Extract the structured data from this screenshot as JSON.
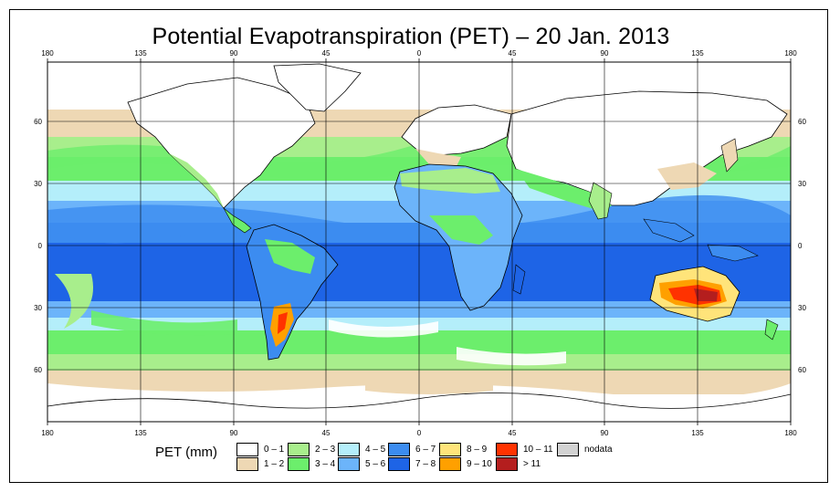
{
  "title": "Potential Evapotranspiration (PET) – 20 Jan. 2013",
  "longitude_ticks": [
    "180",
    "135",
    "90",
    "45",
    "0",
    "45",
    "90",
    "135",
    "180"
  ],
  "latitude_ticks": [
    "60",
    "30",
    "0",
    "30",
    "60"
  ],
  "legend": {
    "label": "PET (mm)",
    "items": [
      {
        "label": "0 – 1",
        "color": "#ffffff"
      },
      {
        "label": "1 – 2",
        "color": "#eed8b4"
      },
      {
        "label": "2 – 3",
        "color": "#a8ee8c"
      },
      {
        "label": "3 – 4",
        "color": "#6cee6c"
      },
      {
        "label": "4 – 5",
        "color": "#b4eefa"
      },
      {
        "label": "5 – 6",
        "color": "#6cb4fa"
      },
      {
        "label": "6 – 7",
        "color": "#3c8cf0"
      },
      {
        "label": "7 – 8",
        "color": "#1e64e6"
      },
      {
        "label": "8 – 9",
        "color": "#ffe47a"
      },
      {
        "label": "9 – 10",
        "color": "#ffa000"
      },
      {
        "label": "10 – 11",
        "color": "#ff3200"
      },
      {
        "label": "> 11",
        "color": "#b41e1e"
      },
      {
        "label": "nodata",
        "color": "#d2d2d2"
      }
    ]
  }
}
